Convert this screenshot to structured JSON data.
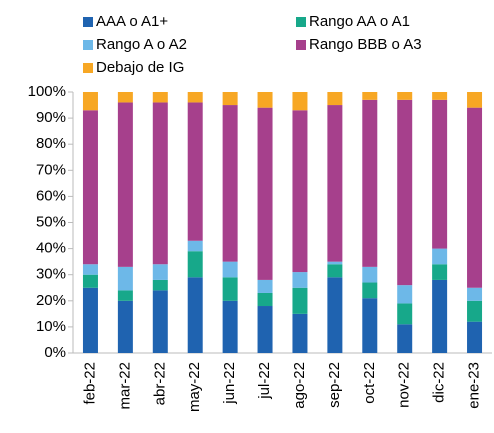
{
  "chart_data": {
    "type": "stacked_bar",
    "categories": [
      "feb-22",
      "mar-22",
      "abr-22",
      "may-22",
      "jun-22",
      "jul-22",
      "ago-22",
      "sep-22",
      "oct-22",
      "nov-22",
      "dic-22",
      "ene-23"
    ],
    "series": [
      {
        "name": "AAA o A1+",
        "color": "#1f63b0",
        "values": [
          25,
          20,
          24,
          29,
          20,
          18,
          15,
          29,
          21,
          11,
          28,
          12
        ]
      },
      {
        "name": "Rango AA o A1",
        "color": "#17a88a",
        "values": [
          5,
          4,
          4,
          10,
          9,
          5,
          10,
          5,
          6,
          8,
          6,
          8
        ]
      },
      {
        "name": "Rango A o A2",
        "color": "#6db8e8",
        "values": [
          4,
          9,
          6,
          4,
          6,
          5,
          6,
          1,
          6,
          7,
          6,
          5
        ]
      },
      {
        "name": "Rango BBB o A3",
        "color": "#a6408c",
        "values": [
          59,
          63,
          62,
          53,
          60,
          66,
          62,
          60,
          64,
          71,
          57,
          69
        ]
      },
      {
        "name": "Debajo de IG",
        "color": "#f7a724",
        "values": [
          7,
          4,
          4,
          4,
          5,
          6,
          7,
          5,
          3,
          3,
          3,
          6
        ]
      }
    ],
    "ylim": [
      0,
      100
    ],
    "yticks": [
      {
        "value": 0,
        "label": "0%"
      },
      {
        "value": 10,
        "label": "10%"
      },
      {
        "value": 20,
        "label": "20%"
      },
      {
        "value": 30,
        "label": "30%"
      },
      {
        "value": 40,
        "label": "40%"
      },
      {
        "value": 50,
        "label": "50%"
      },
      {
        "value": 60,
        "label": "60%"
      },
      {
        "value": 70,
        "label": "70%"
      },
      {
        "value": 80,
        "label": "80%"
      },
      {
        "value": 90,
        "label": "90%"
      },
      {
        "value": 100,
        "label": "100%"
      }
    ]
  }
}
